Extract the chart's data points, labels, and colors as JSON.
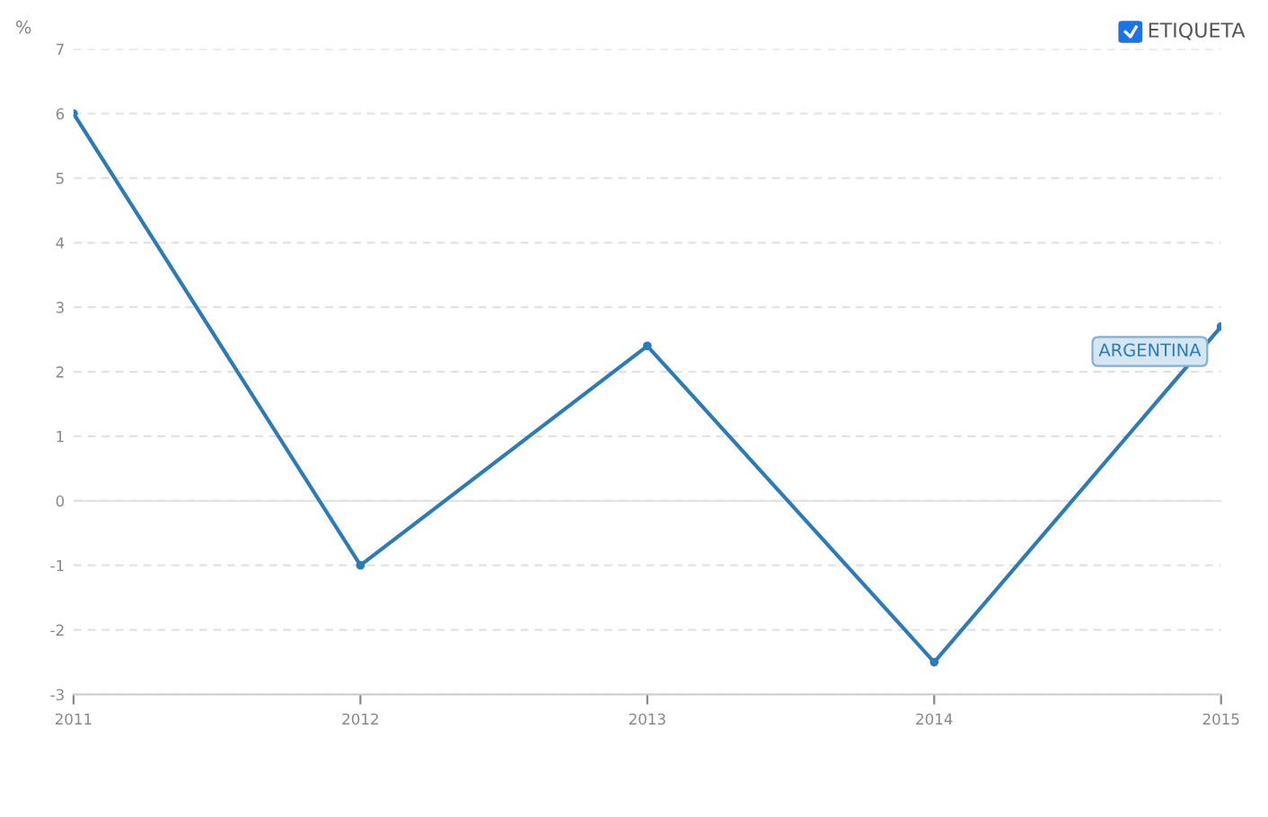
{
  "chart_data": {
    "type": "line",
    "ylabel": "%",
    "x": [
      2011,
      2012,
      2013,
      2014,
      2015
    ],
    "series": [
      {
        "name": "ARGENTINA",
        "color": "#2c7bb6",
        "values": [
          6.0,
          -1.0,
          2.4,
          -2.5,
          2.7
        ]
      }
    ],
    "xlim": [
      2011,
      2015
    ],
    "xticks": [
      2011,
      2012,
      2013,
      2014,
      2015
    ],
    "ylim": [
      -3,
      7
    ],
    "yticks": [
      -3,
      -2,
      -1,
      0,
      1,
      2,
      3,
      4,
      5,
      6,
      7
    ],
    "grid": "y",
    "marker": "circle",
    "line_style": "solid",
    "annotations": [
      "ETIQUETA"
    ]
  }
}
